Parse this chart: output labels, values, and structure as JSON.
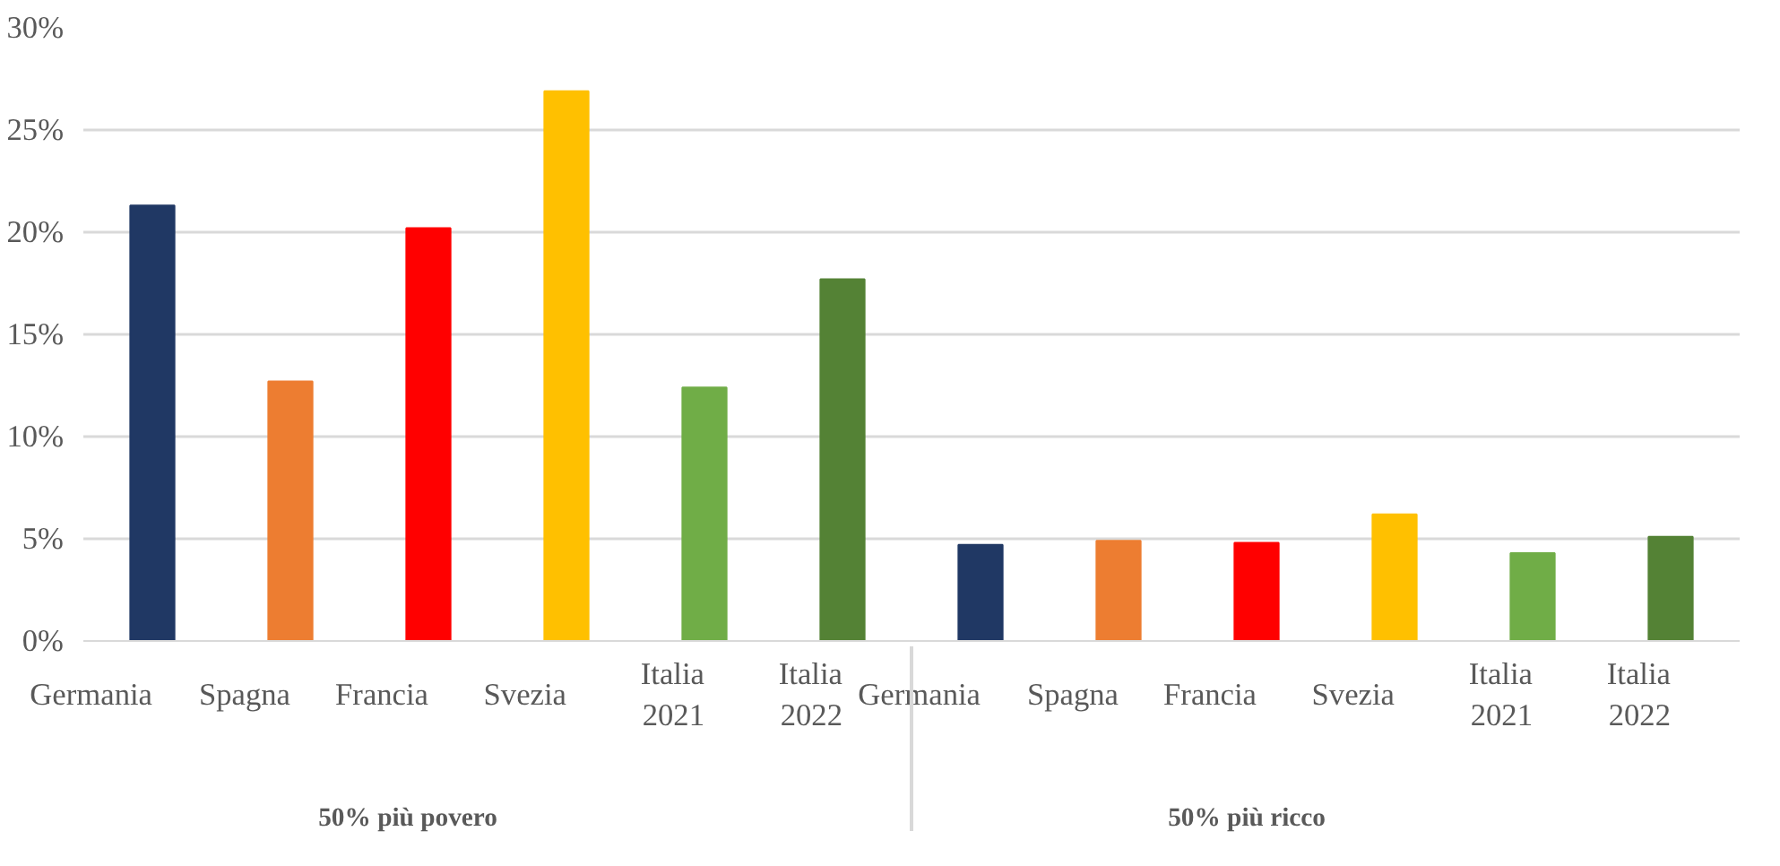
{
  "chart_data": {
    "type": "bar",
    "categories": [
      "Germania",
      "Spagna",
      "Francia",
      "Svezia",
      "Italia\n2021",
      "Italia\n2022",
      "Germania",
      "Spagna",
      "Francia",
      "Svezia",
      "Italia\n2021",
      "Italia\n2022"
    ],
    "values": [
      21.3,
      12.7,
      20.2,
      26.9,
      12.4,
      17.7,
      4.7,
      4.9,
      4.8,
      6.2,
      4.3,
      5.1
    ],
    "colors": [
      "#203864",
      "#ed7d31",
      "#ff0000",
      "#ffc000",
      "#70ad47",
      "#548235",
      "#203864",
      "#ed7d31",
      "#ff0000",
      "#ffc000",
      "#70ad47",
      "#548235"
    ],
    "annotations": [
      "50% più povero",
      "50% più ricco"
    ],
    "ylim": [
      0,
      30
    ],
    "yticks": [
      {
        "value": 0,
        "label": "0%"
      },
      {
        "value": 5,
        "label": "5%"
      },
      {
        "value": 10,
        "label": "10%"
      },
      {
        "value": 15,
        "label": "15%"
      },
      {
        "value": 20,
        "label": "20%"
      },
      {
        "value": 25,
        "label": "25%"
      },
      {
        "value": 30,
        "label": "30%"
      }
    ],
    "grid": "y"
  }
}
